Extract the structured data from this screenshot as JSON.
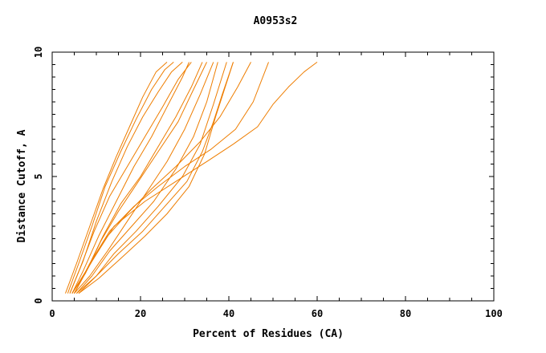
{
  "chart_data": {
    "type": "line",
    "title": "A0953s2",
    "xlabel": "Percent of Residues (CA)",
    "ylabel": "Distance Cutoff, A",
    "xlim": [
      0,
      100
    ],
    "ylim": [
      0,
      10
    ],
    "xticks": [
      0,
      20,
      40,
      60,
      80,
      100
    ],
    "yticks": [
      0,
      5,
      10
    ],
    "grid": false,
    "line_color": "#ee7d00",
    "series": [
      {
        "x": [
          3.0,
          5.5,
          8.5,
          11.5,
          14.5,
          17.5,
          20.5,
          23.5,
          26.0
        ],
        "y": [
          0.3,
          1.5,
          3.0,
          4.5,
          5.8,
          7.0,
          8.2,
          9.2,
          9.6
        ]
      },
      {
        "x": [
          3.5,
          6.0,
          9.0,
          12.0,
          15.5,
          19.0,
          22.5,
          25.5,
          27.5
        ],
        "y": [
          0.3,
          1.5,
          3.0,
          4.6,
          6.0,
          7.3,
          8.5,
          9.3,
          9.6
        ]
      },
      {
        "x": [
          4.0,
          7.0,
          10.0,
          13.5,
          17.0,
          20.5,
          24.0,
          27.0,
          29.5
        ],
        "y": [
          0.3,
          1.6,
          3.2,
          4.8,
          6.2,
          7.4,
          8.4,
          9.2,
          9.6
        ]
      },
      {
        "x": [
          4.5,
          7.0,
          10.5,
          14.5,
          18.5,
          22.5,
          26.0,
          29.5,
          31.0
        ],
        "y": [
          0.3,
          1.2,
          2.6,
          4.0,
          5.4,
          6.6,
          7.8,
          9.0,
          9.6
        ]
      },
      {
        "x": [
          4.0,
          6.5,
          9.5,
          13.0,
          17.0,
          21.0,
          25.0,
          28.5,
          31.5
        ],
        "y": [
          0.3,
          1.4,
          2.8,
          4.2,
          5.4,
          6.6,
          7.8,
          8.9,
          9.6
        ]
      },
      {
        "x": [
          5.0,
          8.0,
          11.5,
          15.5,
          20.0,
          24.0,
          28.0,
          31.5,
          34.0
        ],
        "y": [
          0.3,
          1.3,
          2.6,
          3.9,
          5.0,
          6.2,
          7.4,
          8.6,
          9.6
        ]
      },
      {
        "x": [
          4.5,
          7.5,
          11.0,
          15.0,
          19.5,
          24.0,
          28.5,
          32.0,
          35.0
        ],
        "y": [
          0.3,
          1.1,
          2.4,
          3.6,
          4.8,
          6.0,
          7.2,
          8.5,
          9.6
        ]
      },
      {
        "x": [
          5.0,
          8.5,
          12.5,
          17.0,
          21.5,
          26.0,
          30.0,
          33.5,
          36.5
        ],
        "y": [
          0.3,
          1.0,
          2.0,
          3.2,
          4.4,
          5.6,
          6.9,
          8.3,
          9.6
        ]
      },
      {
        "x": [
          5.5,
          9.0,
          13.0,
          18.0,
          23.0,
          28.0,
          32.0,
          35.0,
          37.5
        ],
        "y": [
          0.3,
          1.0,
          2.0,
          3.0,
          4.0,
          5.3,
          6.6,
          8.0,
          9.6
        ]
      },
      {
        "x": [
          6.0,
          10.0,
          14.0,
          19.0,
          24.0,
          29.5,
          33.5,
          36.5,
          39.5
        ],
        "y": [
          0.3,
          1.0,
          1.9,
          2.8,
          3.8,
          5.0,
          6.3,
          7.9,
          9.6
        ]
      },
      {
        "x": [
          6.0,
          10.5,
          15.5,
          21.0,
          26.0,
          31.0,
          34.5,
          37.0,
          41.0
        ],
        "y": [
          0.3,
          0.9,
          1.7,
          2.6,
          3.5,
          4.6,
          5.9,
          7.4,
          9.6
        ]
      },
      {
        "x": [
          5.5,
          10.0,
          15.0,
          20.5,
          25.5,
          30.5,
          34.0,
          36.5,
          38.5,
          41.0
        ],
        "y": [
          0.3,
          1.0,
          1.9,
          2.8,
          3.8,
          4.8,
          6.0,
          7.2,
          8.3,
          9.6
        ]
      },
      {
        "x": [
          4.5,
          8.0,
          12.5,
          17.5,
          22.5,
          28.0,
          33.5,
          38.0,
          42.0,
          45.0
        ],
        "y": [
          0.3,
          1.3,
          2.6,
          3.6,
          4.5,
          5.4,
          6.4,
          7.4,
          8.6,
          9.6
        ]
      },
      {
        "x": [
          5.0,
          8.5,
          13.0,
          18.5,
          24.0,
          30.0,
          36.0,
          41.5,
          45.5,
          49.0
        ],
        "y": [
          0.3,
          1.5,
          2.8,
          3.8,
          4.6,
          5.4,
          6.1,
          6.9,
          8.0,
          9.6
        ]
      },
      {
        "x": [
          5.0,
          9.0,
          14.0,
          21.0,
          28.0,
          35.0,
          41.0,
          46.5,
          50.0,
          53.5,
          57.0,
          60.0
        ],
        "y": [
          0.3,
          1.6,
          3.0,
          4.0,
          4.8,
          5.6,
          6.3,
          7.0,
          7.9,
          8.6,
          9.2,
          9.6
        ]
      }
    ]
  }
}
